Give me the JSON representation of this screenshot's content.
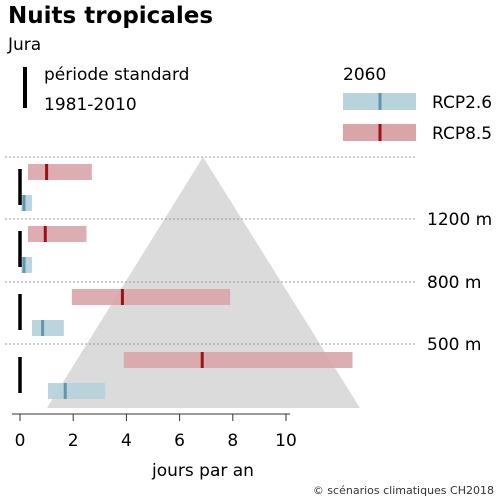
{
  "title": "Nuits tropicales",
  "subtitle": "Jura",
  "legend": {
    "baseline_line1": "période standard",
    "baseline_line2": "1981-2010",
    "future_label": "2060",
    "rcp26_label": "RCP2.6",
    "rcp85_label": "RCP8.5"
  },
  "colors": {
    "rcp26_range": "#b7d3dc",
    "rcp26_median": "#5f95ad",
    "rcp85_range": "#d9a5a8",
    "rcp85_median": "#9b1116",
    "baseline": "#000000",
    "mountain": "#d9d9d9"
  },
  "credit": "© scénarios climatiques CH2018",
  "chart_data": {
    "type": "range-bar",
    "title": "Nuits tropicales",
    "subtitle": "Jura",
    "xlabel": "jours par an",
    "xlim": [
      -0.5,
      12.5
    ],
    "xticks": [
      0,
      2,
      4,
      6,
      8,
      10
    ],
    "xtick_labels": [
      "0",
      "2",
      "4",
      "6",
      "8",
      "10"
    ],
    "grid": false,
    "legend_position": "top-right",
    "elevation_labels": [
      "1200 m",
      "800 m",
      "500 m"
    ],
    "bands": [
      {
        "band": "> 1200 m",
        "baseline": 0,
        "rcp26": {
          "low": 0.05,
          "median": 0.15,
          "high": 0.45
        },
        "rcp85": {
          "low": 0.3,
          "median": 1.0,
          "high": 2.7
        }
      },
      {
        "band": "800–1200 m",
        "baseline": 0,
        "rcp26": {
          "low": 0.05,
          "median": 0.15,
          "high": 0.45
        },
        "rcp85": {
          "low": 0.3,
          "median": 0.95,
          "high": 2.5
        }
      },
      {
        "band": "500–800 m",
        "baseline": 0,
        "rcp26": {
          "low": 0.45,
          "median": 0.85,
          "high": 1.65
        },
        "rcp85": {
          "low": 1.95,
          "median": 3.85,
          "high": 7.9
        }
      },
      {
        "band": "< 500 m",
        "baseline": 0,
        "rcp26": {
          "low": 1.05,
          "median": 1.7,
          "high": 3.2
        },
        "rcp85": {
          "low": 3.9,
          "median": 6.85,
          "high": 12.5
        }
      }
    ]
  }
}
